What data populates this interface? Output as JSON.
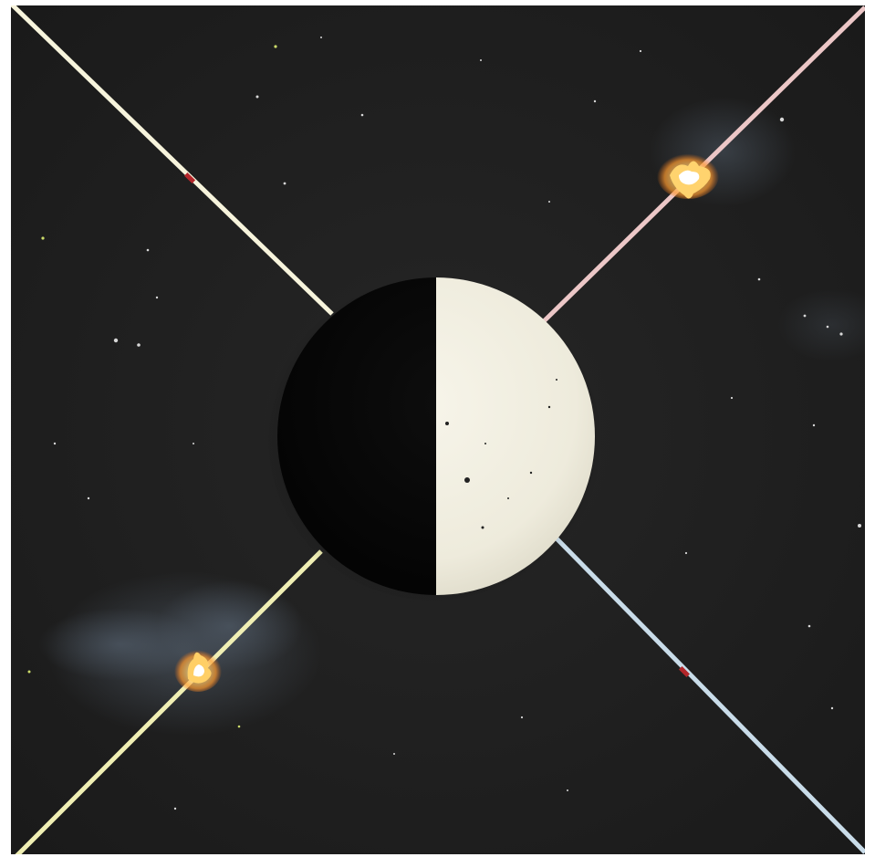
{
  "scene": {
    "background_color": "#1f1f1f",
    "sphere": {
      "dark_half_color": "#060606",
      "light_half_color": "#f1eee0"
    },
    "fuses": [
      {
        "name": "top-left",
        "color": "#f7f4dc",
        "state": "intact"
      },
      {
        "name": "top-right",
        "color": "#ecc7c7",
        "state": "burning"
      },
      {
        "name": "bottom-left",
        "color": "#f0efb4",
        "state": "burning"
      },
      {
        "name": "bottom-right",
        "color": "#c9dce9",
        "state": "intact"
      }
    ],
    "marker_color": "#b3262a",
    "flame_color": "#ffb13a",
    "smoke_color": "#4b5866"
  }
}
